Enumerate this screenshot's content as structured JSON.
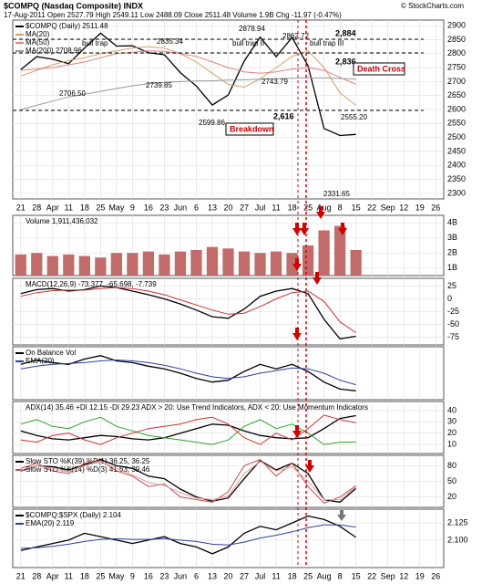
{
  "header": {
    "title": "$COMPQ (Nasdaq Composite) INDX",
    "info": "17-Aug-2011  Open 2527.79  High 2549.11  Low 2488.09  Close 2511.48  Volume 1.9B  Chg -11.97 (-0.47%)",
    "credit": "© StockCharts.com"
  },
  "chart_data": [
    {
      "type": "line",
      "categories": [
        "21",
        "28",
        "Apr",
        "11",
        "18",
        "25",
        "May",
        "9",
        "16",
        "23",
        "Jun",
        "6",
        "13",
        "20",
        "27",
        "Jul",
        "11",
        "18",
        "25",
        "Aug",
        "8",
        "15",
        "22",
        "Sep",
        "12",
        "19",
        "26"
      ],
      "series": [
        {
          "name": "$COMPQ (Daily) 2511.48",
          "color": "#000000",
          "values": [
            2743,
            2789,
            2780,
            2764,
            2820,
            2873,
            2827,
            2828,
            2803,
            2796,
            2732,
            2684,
            2616,
            2652,
            2773,
            2859,
            2789,
            2858,
            2756,
            2532,
            2507,
            2511,
            null,
            null,
            null,
            null,
            null
          ]
        },
        {
          "name": "MA(20)",
          "color": "#d4a06a",
          "values": [
            2720,
            2740,
            2760,
            2775,
            2785,
            2800,
            2810,
            2820,
            2825,
            2820,
            2800,
            2770,
            2730,
            2690,
            2680,
            2710,
            2750,
            2790,
            2810,
            2750,
            2660,
            2615,
            null,
            null,
            null,
            null,
            null
          ]
        },
        {
          "name": "MA(50)",
          "color": "#e08080",
          "values": [
            2740,
            2745,
            2750,
            2760,
            2770,
            2785,
            2800,
            2805,
            2810,
            2808,
            2800,
            2790,
            2770,
            2750,
            2735,
            2730,
            2735,
            2745,
            2750,
            2740,
            2715,
            2690,
            null,
            null,
            null,
            null,
            null
          ]
        },
        {
          "name": "MA(200) 2708.96",
          "color": "#999999",
          "values": [
            2600,
            2615,
            2630,
            2645,
            2655,
            2665,
            2675,
            2685,
            2692,
            2697,
            2700,
            2702,
            2703,
            2705,
            2706,
            2708,
            2710,
            2712,
            2713,
            2713,
            2711,
            2709,
            null,
            null,
            null,
            null,
            null
          ]
        }
      ],
      "annotations": [
        "bull trap",
        "bull trap II",
        "bull trap III",
        "2,884",
        "2,836",
        "Death Cross",
        "2,616",
        "Breakdown",
        "2706.50",
        "2835.34",
        "2739.85",
        "2878.94",
        "2743.79",
        "2862.72",
        "2599.86",
        "2555.20",
        "2331.65"
      ],
      "ylim": [
        2280,
        2920
      ],
      "yticks": [
        2300,
        2350,
        2400,
        2450,
        2500,
        2550,
        2600,
        2650,
        2700,
        2750,
        2800,
        2850,
        2900
      ],
      "grid": true
    },
    {
      "type": "bar",
      "title": "Volume 1,911,436,032",
      "color": "#c26b6b",
      "values": [
        1900000000,
        2000000000,
        1800000000,
        1900000000,
        1800000000,
        1700000000,
        2000000000,
        2000000000,
        2100000000,
        1900000000,
        2100000000,
        2200000000,
        2400000000,
        2300000000,
        2100000000,
        2000000000,
        2100000000,
        2000000000,
        2500000000,
        3500000000,
        3800000000,
        2200000000,
        null,
        null,
        null,
        null,
        null
      ],
      "ylim": [
        500000000,
        4500000000
      ],
      "yticks": [
        {
          "value": 1000000000,
          "label": "1B"
        },
        {
          "value": 2000000000,
          "label": "2B"
        },
        {
          "value": 3000000000,
          "label": "3B"
        },
        {
          "value": 4000000000,
          "label": "4B"
        }
      ],
      "grid": true
    },
    {
      "type": "line",
      "title": "MACD(12,26,9) -73.377, -65.698, -7.739",
      "series": [
        {
          "color": "#000000",
          "values": [
            10,
            18,
            20,
            15,
            18,
            25,
            22,
            15,
            8,
            0,
            -10,
            -22,
            -35,
            -38,
            -20,
            5,
            15,
            20,
            10,
            -40,
            -78,
            -73,
            null,
            null,
            null,
            null,
            null
          ]
        },
        {
          "color": "#d03030",
          "values": [
            5,
            12,
            16,
            17,
            17,
            20,
            22,
            20,
            15,
            8,
            -2,
            -12,
            -22,
            -30,
            -28,
            -15,
            0,
            12,
            15,
            -5,
            -45,
            -66,
            null,
            null,
            null,
            null,
            null
          ]
        }
      ],
      "ylim": [
        -90,
        40
      ],
      "yticks": [
        25,
        0,
        -25,
        -50,
        -75
      ],
      "grid": true
    },
    {
      "type": "line",
      "series": [
        {
          "name": "On Balance Vol",
          "color": "#000000",
          "values": [
            60,
            65,
            62,
            60,
            66,
            70,
            64,
            62,
            58,
            55,
            50,
            44,
            40,
            42,
            52,
            60,
            55,
            60,
            52,
            40,
            32,
            30,
            null,
            null,
            null,
            null,
            null
          ]
        },
        {
          "name": "EMA(20)",
          "color": "#3040a0",
          "values": [
            55,
            58,
            60,
            61,
            62,
            64,
            65,
            64,
            62,
            59,
            55,
            50,
            46,
            44,
            46,
            50,
            53,
            56,
            55,
            50,
            42,
            37,
            null,
            null,
            null,
            null,
            null
          ]
        }
      ],
      "ylim": [
        20,
        80
      ],
      "grid": false
    },
    {
      "type": "line",
      "title": "ADX(14) 35.46 +DI 12.15 -DI 29.23  ADX > 20: Use Trend Indicators, ADX < 20: Use Momentum Indicators",
      "series": [
        {
          "color": "#000000",
          "values": [
            22,
            18,
            15,
            14,
            16,
            18,
            17,
            15,
            14,
            16,
            20,
            24,
            28,
            27,
            22,
            18,
            16,
            15,
            16,
            24,
            33,
            35.46,
            null,
            null,
            null,
            null,
            null
          ]
        },
        {
          "color": "#30a030",
          "values": [
            28,
            32,
            26,
            24,
            30,
            34,
            26,
            22,
            18,
            16,
            14,
            12,
            10,
            14,
            26,
            32,
            24,
            28,
            20,
            10,
            12,
            12.15,
            null,
            null,
            null,
            null,
            null
          ]
        },
        {
          "color": "#d03030",
          "values": [
            14,
            12,
            18,
            20,
            14,
            10,
            16,
            20,
            24,
            26,
            28,
            32,
            34,
            28,
            16,
            10,
            20,
            14,
            24,
            36,
            32,
            29.23,
            null,
            null,
            null,
            null,
            null
          ]
        }
      ],
      "ylim": [
        2,
        48
      ],
      "yticks": [
        10,
        20,
        30,
        40
      ],
      "grid": true
    },
    {
      "type": "line",
      "series": [
        {
          "name": "Slow STO %K(39) %D(1) 36.25, 36.25",
          "color": "#000000",
          "values": [
            70,
            80,
            78,
            72,
            82,
            92,
            80,
            75,
            60,
            55,
            35,
            20,
            12,
            18,
            55,
            90,
            72,
            85,
            65,
            15,
            10,
            36.25,
            null,
            null,
            null,
            null,
            null
          ]
        },
        {
          "name": "Slow STO %K(14) %D(3) 41.63, 39.46",
          "color": "#c05050",
          "values": [
            75,
            85,
            70,
            65,
            85,
            90,
            70,
            60,
            40,
            45,
            20,
            15,
            10,
            30,
            80,
            92,
            60,
            85,
            40,
            8,
            20,
            41.63,
            null,
            null,
            null,
            null,
            null
          ]
        },
        {
          "color": "#e0a0a0",
          "values": [
            72,
            80,
            75,
            68,
            80,
            88,
            75,
            62,
            48,
            42,
            28,
            18,
            15,
            22,
            65,
            88,
            70,
            78,
            50,
            15,
            15,
            39.46,
            null,
            null,
            null,
            null,
            null
          ]
        }
      ],
      "ylim": [
        0,
        100
      ],
      "yticks": [
        20,
        50,
        80
      ],
      "grid": true
    },
    {
      "type": "line",
      "categories": [
        "21",
        "28",
        "Apr",
        "11",
        "18",
        "25",
        "May",
        "9",
        "16",
        "23",
        "Jun",
        "6",
        "13",
        "20",
        "27",
        "Jul",
        "11",
        "18",
        "25",
        "Aug",
        "8",
        "15",
        "22",
        "Sep",
        "12",
        "19",
        "26"
      ],
      "series": [
        {
          "name": "$COMPQ:$SPX (Daily) 2.104",
          "color": "#000000",
          "values": [
            2.085,
            2.09,
            2.095,
            2.1,
            2.11,
            2.105,
            2.1,
            2.095,
            2.1,
            2.105,
            2.095,
            2.09,
            2.08,
            2.09,
            2.11,
            2.12,
            2.115,
            2.125,
            2.135,
            2.13,
            2.12,
            2.104,
            null,
            null,
            null,
            null,
            null
          ]
        },
        {
          "name": "EMA(20) 2.119",
          "color": "#3040a0",
          "values": [
            2.088,
            2.089,
            2.091,
            2.094,
            2.098,
            2.101,
            2.102,
            2.101,
            2.101,
            2.102,
            2.1,
            2.098,
            2.094,
            2.093,
            2.097,
            2.103,
            2.107,
            2.112,
            2.118,
            2.122,
            2.122,
            2.119,
            null,
            null,
            null,
            null,
            null
          ]
        }
      ],
      "ylim": [
        2.06,
        2.145
      ],
      "yticks": [
        {
          "value": 2.1,
          "label": "2.100"
        },
        {
          "value": 2.125,
          "label": "2.125"
        }
      ],
      "grid": true
    }
  ]
}
